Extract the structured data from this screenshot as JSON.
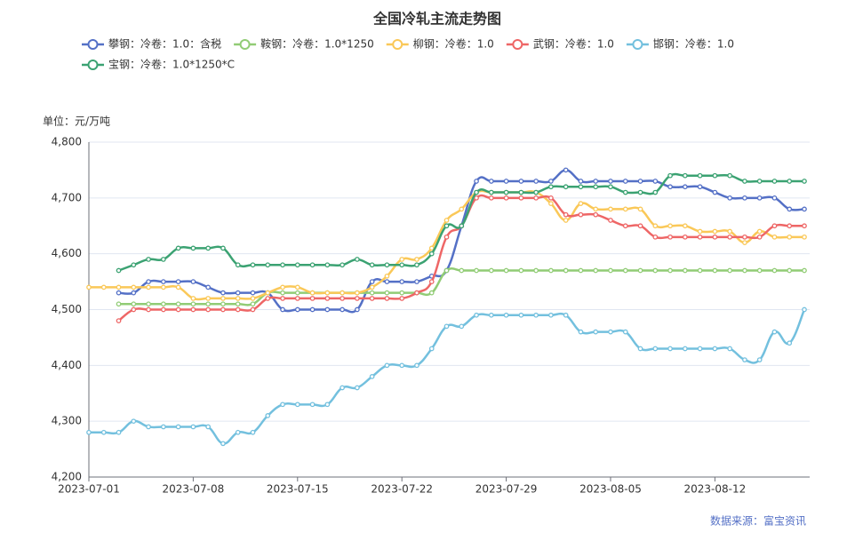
{
  "chart_data": {
    "type": "line",
    "title": "全国冷轧主流走势图",
    "y_label": "单位：元/万吨",
    "source": "数据来源：富宝资讯",
    "x": [
      "2023-07-01",
      "2023-07-02",
      "2023-07-03",
      "2023-07-04",
      "2023-07-05",
      "2023-07-06",
      "2023-07-07",
      "2023-07-08",
      "2023-07-09",
      "2023-07-10",
      "2023-07-11",
      "2023-07-12",
      "2023-07-13",
      "2023-07-14",
      "2023-07-15",
      "2023-07-16",
      "2023-07-17",
      "2023-07-18",
      "2023-07-19",
      "2023-07-20",
      "2023-07-21",
      "2023-07-22",
      "2023-07-23",
      "2023-07-24",
      "2023-07-25",
      "2023-07-26",
      "2023-07-27",
      "2023-07-28",
      "2023-07-29",
      "2023-07-30",
      "2023-07-31",
      "2023-08-01",
      "2023-08-02",
      "2023-08-03",
      "2023-08-04",
      "2023-08-05",
      "2023-08-06",
      "2023-08-07",
      "2023-08-08",
      "2023-08-09",
      "2023-08-10",
      "2023-08-11",
      "2023-08-12",
      "2023-08-13",
      "2023-08-14",
      "2023-08-15",
      "2023-08-16",
      "2023-08-17",
      "2023-08-18"
    ],
    "xlim": [
      "2023-07-01",
      "2023-08-18"
    ],
    "xticks": [
      "2023-07-01",
      "2023-07-08",
      "2023-07-15",
      "2023-07-22",
      "2023-07-29",
      "2023-08-05",
      "2023-08-12"
    ],
    "ylim": [
      4200,
      4800
    ],
    "yticks": [
      {
        "value": 4200,
        "label": "4,200"
      },
      {
        "value": 4300,
        "label": "4,300"
      },
      {
        "value": 4400,
        "label": "4,400"
      },
      {
        "value": 4500,
        "label": "4,500"
      },
      {
        "value": 4600,
        "label": "4,600"
      },
      {
        "value": 4700,
        "label": "4,700"
      },
      {
        "value": 4800,
        "label": "4,800"
      }
    ],
    "grid": true,
    "series": [
      {
        "name": "攀钢：冷卷：1.0：含税",
        "color": "#5470c6",
        "values": [
          null,
          null,
          4530,
          4530,
          4550,
          4550,
          4550,
          4550,
          4540,
          4530,
          4530,
          4530,
          4530,
          4500,
          4500,
          4500,
          4500,
          4500,
          4500,
          4550,
          4550,
          4550,
          4550,
          4560,
          4570,
          4650,
          4730,
          4730,
          4730,
          4730,
          4730,
          4730,
          4750,
          4730,
          4730,
          4730,
          4730,
          4730,
          4730,
          4720,
          4720,
          4720,
          4710,
          4700,
          4700,
          4700,
          4700,
          4680,
          4680
        ]
      },
      {
        "name": "鞍钢：冷卷：1.0*1250",
        "color": "#91cc75",
        "values": [
          null,
          null,
          4510,
          4510,
          4510,
          4510,
          4510,
          4510,
          4510,
          4510,
          4510,
          4510,
          4530,
          4530,
          4530,
          4530,
          4530,
          4530,
          4530,
          4530,
          4530,
          4530,
          4530,
          4530,
          4570,
          4570,
          4570,
          4570,
          4570,
          4570,
          4570,
          4570,
          4570,
          4570,
          4570,
          4570,
          4570,
          4570,
          4570,
          4570,
          4570,
          4570,
          4570,
          4570,
          4570,
          4570,
          4570,
          4570,
          4570
        ]
      },
      {
        "name": "柳钢：冷卷：1.0",
        "color": "#fac858",
        "values": [
          4540,
          4540,
          4540,
          4540,
          4540,
          4540,
          4540,
          4520,
          4520,
          4520,
          4520,
          4520,
          4530,
          4540,
          4540,
          4530,
          4530,
          4530,
          4530,
          4540,
          4560,
          4590,
          4590,
          4610,
          4660,
          4680,
          4710,
          4710,
          4710,
          4710,
          4710,
          4690,
          4660,
          4690,
          4680,
          4680,
          4680,
          4680,
          4650,
          4650,
          4650,
          4640,
          4640,
          4640,
          4620,
          4640,
          4630,
          4630,
          4630
        ]
      },
      {
        "name": "武钢：冷卷：1.0",
        "color": "#ee6666",
        "values": [
          null,
          null,
          4480,
          4500,
          4500,
          4500,
          4500,
          4500,
          4500,
          4500,
          4500,
          4500,
          4520,
          4520,
          4520,
          4520,
          4520,
          4520,
          4520,
          4520,
          4520,
          4520,
          4530,
          4550,
          4630,
          4650,
          4700,
          4700,
          4700,
          4700,
          4700,
          4700,
          4670,
          4670,
          4670,
          4660,
          4650,
          4650,
          4630,
          4630,
          4630,
          4630,
          4630,
          4630,
          4630,
          4630,
          4650,
          4650,
          4650
        ]
      },
      {
        "name": "邯钢：冷卷：1.0",
        "color": "#73c0de",
        "values": [
          4280,
          4280,
          4280,
          4300,
          4290,
          4290,
          4290,
          4290,
          4290,
          4260,
          4280,
          4280,
          4310,
          4330,
          4330,
          4330,
          4330,
          4360,
          4360,
          4380,
          4400,
          4400,
          4400,
          4430,
          4470,
          4470,
          4490,
          4490,
          4490,
          4490,
          4490,
          4490,
          4490,
          4460,
          4460,
          4460,
          4460,
          4430,
          4430,
          4430,
          4430,
          4430,
          4430,
          4430,
          4410,
          4410,
          4460,
          4440,
          4500
        ]
      },
      {
        "name": "宝钢：冷卷：1.0*1250*C",
        "color": "#3ba272",
        "values": [
          null,
          null,
          4570,
          4580,
          4590,
          4590,
          4610,
          4610,
          4610,
          4610,
          4580,
          4580,
          4580,
          4580,
          4580,
          4580,
          4580,
          4580,
          4590,
          4580,
          4580,
          4580,
          4580,
          4600,
          4650,
          4650,
          4710,
          4710,
          4710,
          4710,
          4710,
          4720,
          4720,
          4720,
          4720,
          4720,
          4710,
          4710,
          4710,
          4740,
          4740,
          4740,
          4740,
          4740,
          4730,
          4730,
          4730,
          4730,
          4730
        ]
      }
    ]
  }
}
